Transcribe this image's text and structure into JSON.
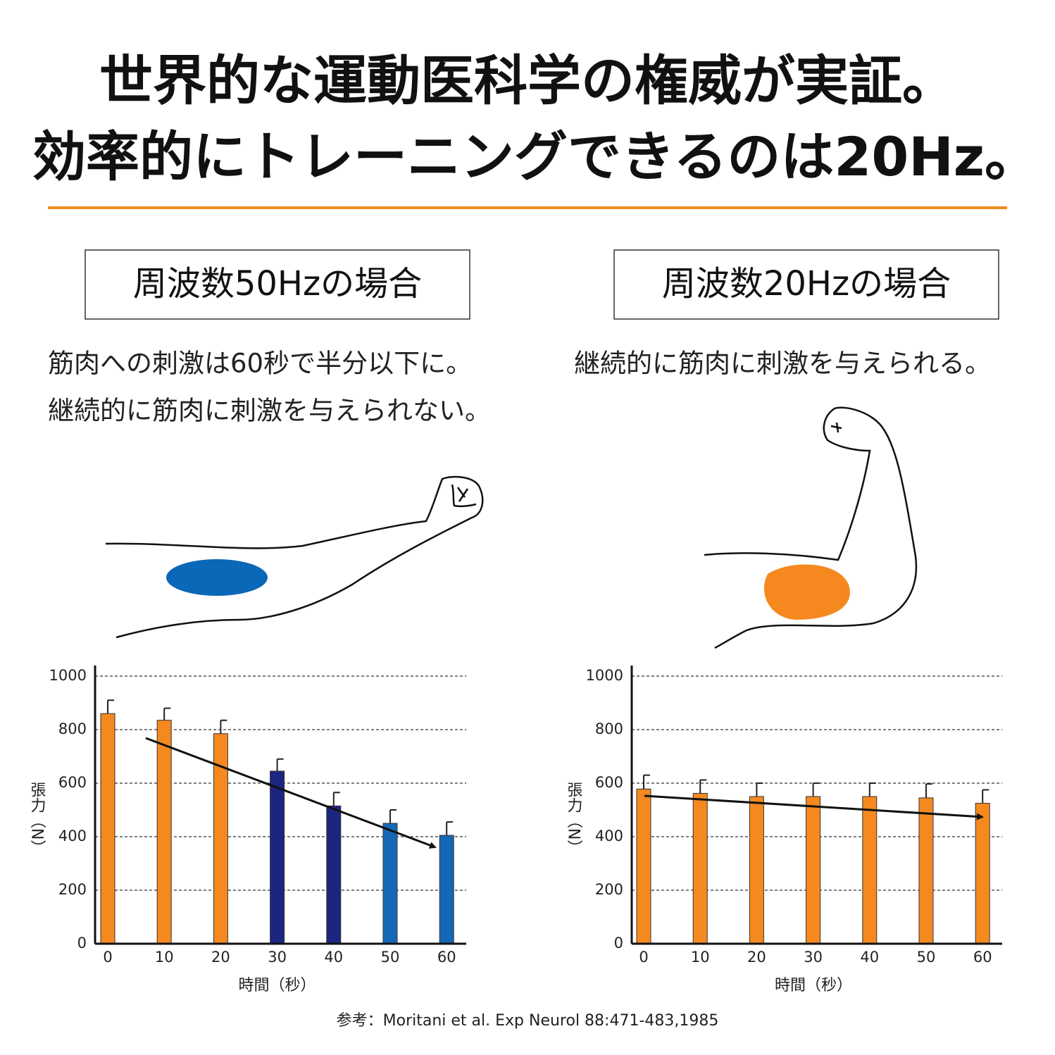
{
  "header": {
    "title": [
      "世界的な運動医科学の権威が実証。",
      "効率的にトレーニングできるのは20Hz。"
    ]
  },
  "panels": [
    {
      "label": "周波数50Hzの場合",
      "text": [
        "筋肉への刺激は60秒で半分以下に。",
        "継続的に筋肉に刺激を与えられない。"
      ]
    },
    {
      "label": "周波数20Hzの場合",
      "text": [
        "継続的に筋肉に刺激を与えられる。"
      ]
    }
  ],
  "chart_data": [
    {
      "type": "bar",
      "y_label": "張力（N）",
      "x_label": "時間（秒）",
      "categories": [
        "0",
        "10",
        "20",
        "30",
        "40",
        "50",
        "60"
      ],
      "values": [
        860,
        835,
        785,
        645,
        515,
        450,
        405
      ],
      "errors": [
        50,
        45,
        50,
        45,
        50,
        50,
        50
      ],
      "colors": [
        "#f5891f",
        "#f5891f",
        "#f5891f",
        "#1c2580",
        "#1c2580",
        "#1568b5",
        "#1568b5"
      ],
      "ylim": [
        0,
        1000
      ],
      "yticks": [
        0,
        200,
        400,
        600,
        800,
        1000
      ],
      "grid": true
    },
    {
      "type": "bar",
      "y_label": "張力（N）",
      "x_label": "時間（秒）",
      "categories": [
        "0",
        "10",
        "20",
        "30",
        "40",
        "50",
        "60"
      ],
      "values": [
        578,
        562,
        550,
        550,
        550,
        545,
        525
      ],
      "errors": [
        52,
        50,
        50,
        50,
        50,
        52,
        50
      ],
      "color": "#f5891f",
      "ylim": [
        0,
        1000
      ],
      "yticks": [
        0,
        200,
        400,
        600,
        800,
        1000
      ],
      "grid": true
    }
  ],
  "footer": {
    "reference": "参考：Moritani et al. Exp Neurol 88:471-483,1985"
  }
}
